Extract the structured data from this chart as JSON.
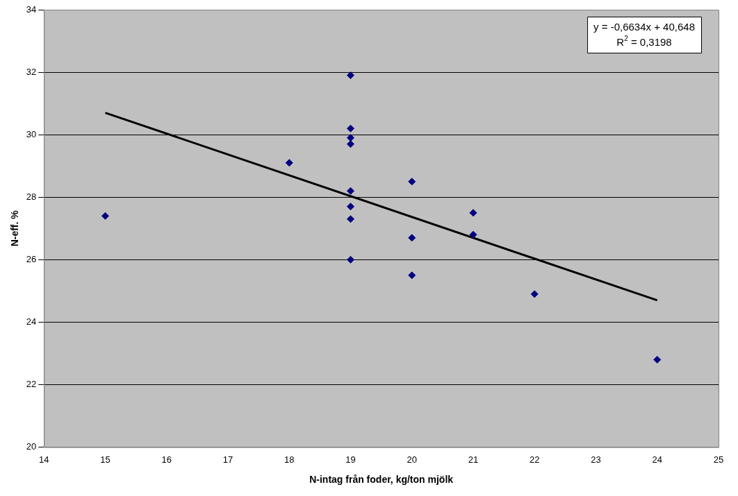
{
  "chart_data": {
    "type": "scatter",
    "xlabel": "N-intag från foder, kg/ton mjölk",
    "ylabel": "N-eff. %",
    "xlim": [
      14,
      25
    ],
    "xticks": [
      14,
      15,
      16,
      17,
      18,
      19,
      20,
      21,
      22,
      23,
      24,
      25
    ],
    "ylim": [
      20,
      34
    ],
    "yticks": [
      20,
      22,
      24,
      26,
      28,
      30,
      32,
      34
    ],
    "grid": "y",
    "legend": false,
    "marker": "diamond",
    "series": [
      {
        "color": "#000080",
        "x": [
          15,
          18,
          19,
          19,
          19,
          19,
          19,
          19,
          19,
          19,
          20,
          20,
          20,
          21,
          21,
          22,
          24
        ],
        "values": [
          27.4,
          29.1,
          31.9,
          30.2,
          29.9,
          29.7,
          28.2,
          27.7,
          27.3,
          26.0,
          28.5,
          26.7,
          25.5,
          27.5,
          26.8,
          24.9,
          22.8
        ]
      },
      {
        "type": "line",
        "color": "#000000",
        "x": [
          15,
          24
        ],
        "values": [
          30.7,
          24.7
        ],
        "marker": "none",
        "line_style": "solid"
      }
    ],
    "annotations": [
      "y = -0,6634x + 40,648",
      "R$^{2}$ = 0,3198"
    ]
  }
}
